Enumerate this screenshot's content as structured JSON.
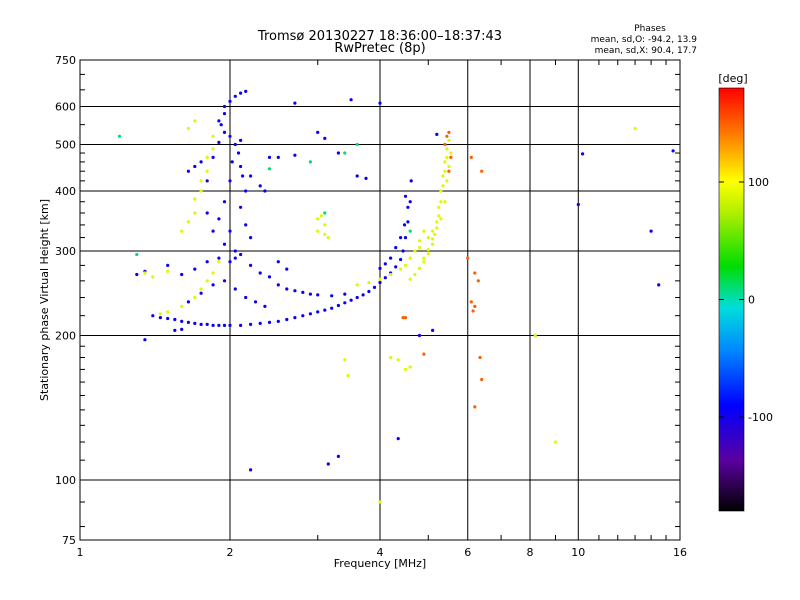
{
  "chart_data": {
    "type": "scatter",
    "title": "Tromsø 20130227 18:36:00–18:37:43",
    "subtitle": "RwPretec (8p)",
    "xlabel": "Frequency [MHz]",
    "ylabel": "Stationary phase Virtual Height [km]",
    "x_scale": "log",
    "y_scale": "log",
    "xlim": [
      1,
      16
    ],
    "ylim": [
      75,
      750
    ],
    "x_ticks": [
      1,
      2,
      4,
      6,
      8,
      10,
      16
    ],
    "x_tick_labels": [
      "1",
      "2",
      "4",
      "6",
      "8",
      "10",
      "16"
    ],
    "y_ticks": [
      75,
      100,
      200,
      300,
      400,
      500,
      600,
      750
    ],
    "y_tick_labels": [
      "75",
      "100",
      "200",
      "300",
      "400",
      "500",
      "600",
      "750"
    ],
    "grid": true,
    "stats": {
      "title": "Phases",
      "line1": "mean, sd,O: -94.2, 13.9",
      "line2": "mean, sd,X:  90.4, 17.7"
    },
    "colorbar": {
      "label": "[deg]",
      "range": [
        -180,
        180
      ],
      "ticks": [
        100,
        0,
        -100
      ],
      "tick_labels": [
        "100",
        "0",
        "-100"
      ]
    },
    "series": [
      {
        "mode": "O",
        "phase": -95,
        "points": [
          [
            1.4,
            220
          ],
          [
            1.45,
            218
          ],
          [
            1.5,
            217
          ],
          [
            1.55,
            216
          ],
          [
            1.6,
            214
          ],
          [
            1.65,
            213
          ],
          [
            1.7,
            212
          ],
          [
            1.75,
            211
          ],
          [
            1.8,
            211
          ],
          [
            1.85,
            210
          ],
          [
            1.9,
            210
          ],
          [
            1.95,
            210
          ],
          [
            2.0,
            210
          ],
          [
            2.1,
            210
          ],
          [
            2.2,
            211
          ],
          [
            2.3,
            212
          ],
          [
            2.4,
            213
          ],
          [
            2.5,
            214
          ],
          [
            2.6,
            216
          ],
          [
            2.7,
            218
          ],
          [
            2.8,
            220
          ],
          [
            2.9,
            222
          ],
          [
            3.0,
            224
          ],
          [
            3.1,
            226
          ],
          [
            3.2,
            228
          ],
          [
            3.3,
            231
          ],
          [
            3.4,
            234
          ],
          [
            3.5,
            237
          ],
          [
            3.6,
            240
          ],
          [
            3.7,
            243
          ],
          [
            3.8,
            247
          ],
          [
            3.9,
            252
          ],
          [
            4.0,
            258
          ],
          [
            4.1,
            264
          ],
          [
            4.2,
            270
          ],
          [
            4.3,
            278
          ],
          [
            4.4,
            288
          ],
          [
            4.45,
            300
          ],
          [
            4.5,
            320
          ],
          [
            4.55,
            345
          ],
          [
            4.6,
            380
          ],
          [
            4.62,
            420
          ],
          [
            1.3,
            268
          ],
          [
            1.35,
            272
          ],
          [
            1.5,
            280
          ],
          [
            1.6,
            268
          ],
          [
            1.7,
            275
          ],
          [
            1.8,
            285
          ],
          [
            1.9,
            290
          ],
          [
            2.0,
            285
          ],
          [
            2.05,
            300
          ],
          [
            2.1,
            295
          ],
          [
            2.2,
            280
          ],
          [
            2.3,
            270
          ],
          [
            2.4,
            265
          ],
          [
            2.5,
            255
          ],
          [
            2.6,
            250
          ],
          [
            2.7,
            248
          ],
          [
            2.8,
            246
          ],
          [
            2.9,
            244
          ],
          [
            3.0,
            243
          ],
          [
            3.2,
            242
          ],
          [
            3.4,
            244
          ],
          [
            1.65,
            235
          ],
          [
            1.75,
            245
          ],
          [
            1.85,
            255
          ],
          [
            1.95,
            260
          ],
          [
            2.05,
            250
          ],
          [
            2.15,
            240
          ],
          [
            2.25,
            235
          ],
          [
            2.35,
            230
          ],
          [
            1.9,
            350
          ],
          [
            1.95,
            380
          ],
          [
            2.0,
            420
          ],
          [
            2.02,
            460
          ],
          [
            2.05,
            500
          ],
          [
            2.0,
            330
          ],
          [
            1.95,
            310
          ],
          [
            2.05,
            290
          ],
          [
            2.08,
            480
          ],
          [
            2.1,
            450
          ],
          [
            2.12,
            430
          ],
          [
            2.15,
            400
          ],
          [
            2.1,
            370
          ],
          [
            2.15,
            340
          ],
          [
            2.2,
            320
          ],
          [
            1.85,
            330
          ],
          [
            1.8,
            360
          ],
          [
            1.8,
            420
          ],
          [
            1.85,
            470
          ],
          [
            1.9,
            505
          ],
          [
            1.95,
            530
          ],
          [
            2.0,
            520
          ],
          [
            2.1,
            510
          ],
          [
            1.95,
            600
          ],
          [
            2.0,
            615
          ],
          [
            2.05,
            630
          ],
          [
            2.1,
            640
          ],
          [
            2.15,
            645
          ],
          [
            1.95,
            580
          ],
          [
            1.9,
            560
          ],
          [
            1.92,
            550
          ],
          [
            1.75,
            460
          ],
          [
            1.7,
            450
          ],
          [
            1.65,
            440
          ],
          [
            2.4,
            470
          ],
          [
            2.5,
            470
          ],
          [
            2.7,
            475
          ],
          [
            2.2,
            430
          ],
          [
            2.3,
            410
          ],
          [
            2.35,
            400
          ],
          [
            3.5,
            620
          ],
          [
            4.0,
            610
          ],
          [
            2.7,
            610
          ],
          [
            3.0,
            530
          ],
          [
            3.1,
            515
          ],
          [
            3.3,
            480
          ],
          [
            3.6,
            430
          ],
          [
            3.75,
            425
          ],
          [
            2.5,
            285
          ],
          [
            2.6,
            275
          ],
          [
            4.5,
            390
          ],
          [
            4.55,
            370
          ],
          [
            4.48,
            340
          ],
          [
            4.4,
            320
          ],
          [
            4.3,
            305
          ],
          [
            4.2,
            290
          ],
          [
            4.1,
            282
          ],
          [
            4.0,
            276
          ],
          [
            1.35,
            196
          ],
          [
            1.55,
            205
          ],
          [
            1.6,
            206
          ],
          [
            2.2,
            105
          ],
          [
            3.15,
            108
          ],
          [
            3.3,
            112
          ],
          [
            4.35,
            122
          ],
          [
            4.8,
            200
          ],
          [
            5.1,
            205
          ],
          [
            8.2,
            200
          ],
          [
            10.0,
            375
          ],
          [
            10.2,
            478
          ],
          [
            14.0,
            330
          ],
          [
            14.5,
            255
          ],
          [
            15.5,
            485
          ],
          [
            5.2,
            525
          ]
        ]
      },
      {
        "mode": "X",
        "phase": 90,
        "points": [
          [
            4.6,
            262
          ],
          [
            4.7,
            268
          ],
          [
            4.8,
            276
          ],
          [
            4.9,
            285
          ],
          [
            5.0,
            296
          ],
          [
            5.1,
            310
          ],
          [
            5.15,
            325
          ],
          [
            5.2,
            345
          ],
          [
            5.25,
            370
          ],
          [
            5.3,
            400
          ],
          [
            5.35,
            430
          ],
          [
            5.4,
            460
          ],
          [
            5.45,
            490
          ],
          [
            5.5,
            510
          ],
          [
            4.9,
            290
          ],
          [
            5.0,
            302
          ],
          [
            5.1,
            318
          ],
          [
            5.2,
            335
          ],
          [
            5.25,
            355
          ],
          [
            5.3,
            380
          ],
          [
            5.35,
            410
          ],
          [
            5.4,
            440
          ],
          [
            5.45,
            470
          ],
          [
            5.3,
            350
          ],
          [
            5.4,
            380
          ],
          [
            5.45,
            420
          ],
          [
            5.5,
            450
          ],
          [
            5.55,
            480
          ],
          [
            3.6,
            255
          ],
          [
            3.8,
            258
          ],
          [
            4.0,
            262
          ],
          [
            4.2,
            268
          ],
          [
            4.4,
            275
          ],
          [
            4.5,
            280
          ],
          [
            4.6,
            290
          ],
          [
            4.7,
            300
          ],
          [
            4.8,
            305
          ],
          [
            5.0,
            320
          ],
          [
            5.1,
            330
          ],
          [
            4.9,
            330
          ],
          [
            4.8,
            315
          ],
          [
            1.45,
            222
          ],
          [
            1.5,
            224
          ],
          [
            1.6,
            230
          ],
          [
            1.7,
            240
          ],
          [
            1.75,
            250
          ],
          [
            1.8,
            260
          ],
          [
            1.85,
            270
          ],
          [
            1.9,
            285
          ],
          [
            1.4,
            265
          ],
          [
            1.35,
            270
          ],
          [
            1.5,
            272
          ],
          [
            1.6,
            330
          ],
          [
            1.65,
            345
          ],
          [
            1.7,
            360
          ],
          [
            1.7,
            385
          ],
          [
            1.75,
            400
          ],
          [
            1.75,
            420
          ],
          [
            1.8,
            440
          ],
          [
            1.8,
            470
          ],
          [
            1.85,
            490
          ],
          [
            1.85,
            520
          ],
          [
            1.65,
            540
          ],
          [
            1.7,
            560
          ],
          [
            3.0,
            350
          ],
          [
            3.05,
            355
          ],
          [
            3.1,
            340
          ],
          [
            3.0,
            330
          ],
          [
            3.1,
            325
          ],
          [
            3.15,
            320
          ],
          [
            3.4,
            178
          ],
          [
            3.45,
            165
          ],
          [
            4.2,
            180
          ],
          [
            4.35,
            178
          ],
          [
            4.5,
            170
          ],
          [
            4.6,
            172
          ],
          [
            4.0,
            90
          ],
          [
            13.0,
            540
          ],
          [
            9.0,
            120
          ],
          [
            8.2,
            200
          ]
        ]
      },
      {
        "mode": "mixed",
        "phase": 10,
        "points": [
          [
            1.2,
            520
          ],
          [
            2.4,
            445
          ],
          [
            3.4,
            480
          ],
          [
            3.6,
            500
          ],
          [
            4.6,
            330
          ],
          [
            1.3,
            295
          ],
          [
            2.9,
            460
          ],
          [
            3.1,
            360
          ]
        ]
      },
      {
        "mode": "mixed",
        "phase": 150,
        "points": [
          [
            5.5,
            530
          ],
          [
            5.45,
            520
          ],
          [
            5.4,
            500
          ],
          [
            5.5,
            440
          ],
          [
            5.55,
            470
          ],
          [
            6.1,
            470
          ],
          [
            6.4,
            440
          ],
          [
            6.2,
            270
          ],
          [
            6.3,
            260
          ],
          [
            6.1,
            235
          ],
          [
            6.15,
            225
          ],
          [
            6.2,
            230
          ],
          [
            6.0,
            290
          ],
          [
            6.2,
            142
          ],
          [
            4.5,
            218
          ],
          [
            4.45,
            218
          ],
          [
            6.35,
            180
          ],
          [
            6.4,
            162
          ],
          [
            4.9,
            183
          ]
        ]
      }
    ]
  }
}
